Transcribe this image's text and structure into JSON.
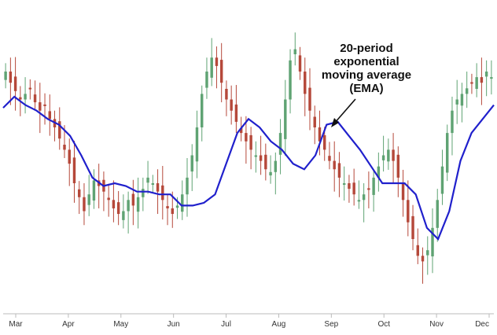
{
  "chart_data": {
    "type": "candlestick",
    "x_tick_labels": [
      "Mar",
      "Apr",
      "May",
      "Jun",
      "Jul",
      "Aug",
      "Sep",
      "Oct",
      "Nov",
      "Dec"
    ],
    "annotation": {
      "lines": [
        "20-period",
        "exponential",
        "moving average",
        "(EMA)"
      ]
    },
    "grid": false,
    "legend": "none",
    "ylim": [
      0,
      100
    ],
    "candle_close_series": [
      80,
      76,
      73,
      70,
      72,
      74,
      69,
      66,
      68,
      63,
      60,
      56,
      52,
      47,
      40,
      35,
      30,
      36,
      41,
      39,
      37,
      34,
      31,
      29,
      30,
      34,
      32,
      35,
      38,
      42,
      40,
      37,
      34,
      31,
      29,
      32,
      36,
      42,
      50,
      60,
      72,
      80,
      85,
      82,
      76,
      70,
      66,
      62,
      58,
      55,
      52,
      50,
      48,
      45,
      44,
      48,
      58,
      70,
      84,
      88,
      80,
      72,
      66,
      60,
      55,
      52,
      48,
      45,
      42,
      40,
      38,
      36,
      34,
      36,
      38,
      42,
      46,
      50,
      52,
      48,
      42,
      34,
      26,
      20,
      14,
      12,
      16,
      24,
      34,
      46,
      58,
      66,
      70,
      72,
      74,
      76,
      78,
      76,
      80,
      78
    ],
    "ema_series": [
      67,
      71,
      68,
      66,
      63,
      61,
      57,
      50,
      42,
      39,
      40,
      39,
      37,
      37,
      36,
      36,
      32,
      32,
      33,
      36,
      47,
      58,
      63,
      60,
      55,
      52,
      47,
      45,
      50,
      61,
      62,
      57,
      52,
      46,
      40,
      40,
      40,
      36,
      24,
      20,
      30,
      48,
      58,
      63,
      68
    ],
    "ema_color": "#2020cc",
    "up_color": "#5fa373",
    "down_color": "#b5483a",
    "axis_color": "#bbbbbb"
  }
}
